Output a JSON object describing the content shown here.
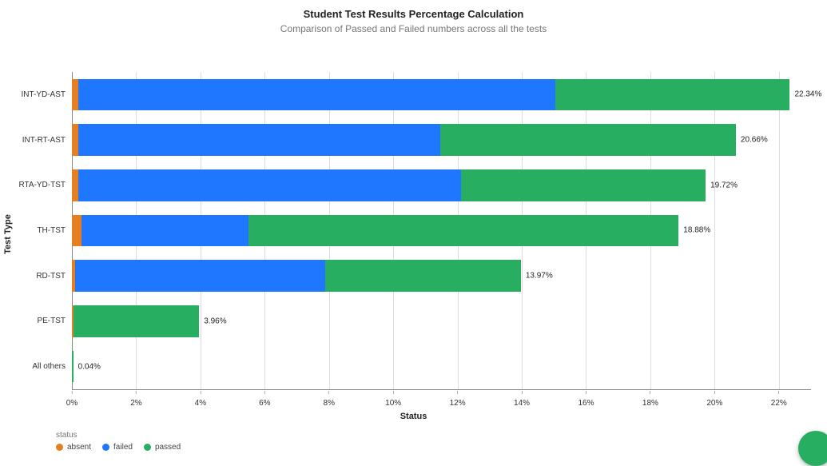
{
  "chart": {
    "type": "stacked-horizontal-bar",
    "title": "Student Test Results Percentage Calculation",
    "subtitle": "Comparison of Passed and Failed numbers across all the tests",
    "title_fontsize": 13,
    "subtitle_fontsize": 12,
    "background_color": "#ffffff",
    "grid_color": "#dddddd",
    "x_axis": {
      "title": "Status",
      "min": 0,
      "max": 23,
      "tick_step": 2,
      "tick_suffix": "%",
      "label_fontsize": 10
    },
    "y_axis": {
      "title": "Test Type",
      "label_fontsize": 10
    },
    "series_colors": {
      "absent": "#e67e22",
      "failed": "#1f77ff",
      "passed": "#27ae60"
    },
    "legend": {
      "title": "status",
      "items": [
        {
          "key": "absent",
          "label": "absent"
        },
        {
          "key": "failed",
          "label": "failed"
        },
        {
          "key": "passed",
          "label": "passed"
        }
      ]
    },
    "categories": [
      {
        "label": "INT-YD-AST",
        "total_label": "22.34%",
        "segments": [
          {
            "series": "absent",
            "value": 0.2
          },
          {
            "series": "failed",
            "value": 14.84
          },
          {
            "series": "passed",
            "value": 7.3
          }
        ]
      },
      {
        "label": "INT-RT-AST",
        "total_label": "20.66%",
        "segments": [
          {
            "series": "absent",
            "value": 0.2
          },
          {
            "series": "failed",
            "value": 11.26
          },
          {
            "series": "passed",
            "value": 9.2
          }
        ]
      },
      {
        "label": "RTA-YD-TST",
        "total_label": "19.72%",
        "segments": [
          {
            "series": "absent",
            "value": 0.2
          },
          {
            "series": "failed",
            "value": 11.92
          },
          {
            "series": "passed",
            "value": 7.6
          }
        ]
      },
      {
        "label": "TH-TST",
        "total_label": "18.88%",
        "segments": [
          {
            "series": "absent",
            "value": 0.3
          },
          {
            "series": "failed",
            "value": 5.2
          },
          {
            "series": "passed",
            "value": 13.38
          }
        ]
      },
      {
        "label": "RD-TST",
        "total_label": "13.97%",
        "segments": [
          {
            "series": "absent",
            "value": 0.1
          },
          {
            "series": "failed",
            "value": 7.77
          },
          {
            "series": "passed",
            "value": 6.1
          }
        ]
      },
      {
        "label": "PE-TST",
        "total_label": "3.96%",
        "segments": [
          {
            "series": "absent",
            "value": 0.06
          },
          {
            "series": "failed",
            "value": 0.0
          },
          {
            "series": "passed",
            "value": 3.9
          }
        ]
      },
      {
        "label": "All others",
        "total_label": "0.04%",
        "segments": [
          {
            "series": "passed",
            "value": 0.04
          }
        ]
      }
    ],
    "bar": {
      "row_height_pct": 14.28,
      "bar_fill_pct": 70
    }
  },
  "fab": {
    "color": "#27ae60"
  }
}
